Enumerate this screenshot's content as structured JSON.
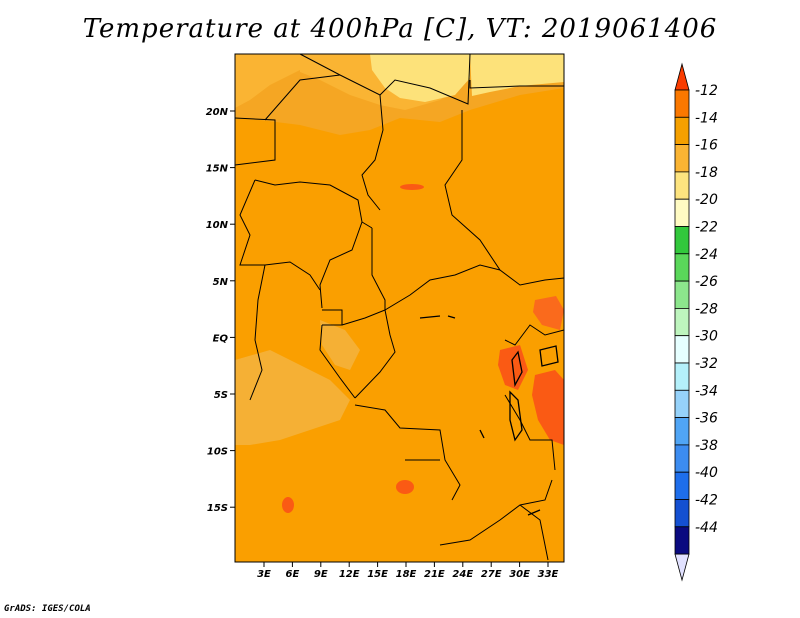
{
  "title": "Temperature at 400hPa [C], VT: 2019061406",
  "credit": "GrADS: IGES/COLA",
  "map": {
    "lon_labels": [
      "3E",
      "6E",
      "9E",
      "12E",
      "15E",
      "18E",
      "21E",
      "24E",
      "27E",
      "30E",
      "33E"
    ],
    "lat_labels": [
      "20N",
      "15N",
      "10N",
      "5N",
      "EQ",
      "5S",
      "10S",
      "15S"
    ]
  },
  "colorbar": {
    "labels": [
      "-12",
      "-14",
      "-16",
      "-18",
      "-20",
      "-22",
      "-24",
      "-26",
      "-28",
      "-30",
      "-32",
      "-34",
      "-36",
      "-38",
      "-40",
      "-42",
      "-44"
    ],
    "colors": [
      "#fa3c00",
      "#fa7800",
      "#f5a000",
      "#fab433",
      "#fde47f",
      "#fffbc3",
      "#32c83c",
      "#5ad75a",
      "#8ce68c",
      "#bef5be",
      "#e6ffff",
      "#b4f0fa",
      "#96d2fa",
      "#50a5f5",
      "#3c8cf0",
      "#1e6eeb",
      "#1450d2",
      "#0a0a80",
      "#e1e1ff"
    ]
  }
}
